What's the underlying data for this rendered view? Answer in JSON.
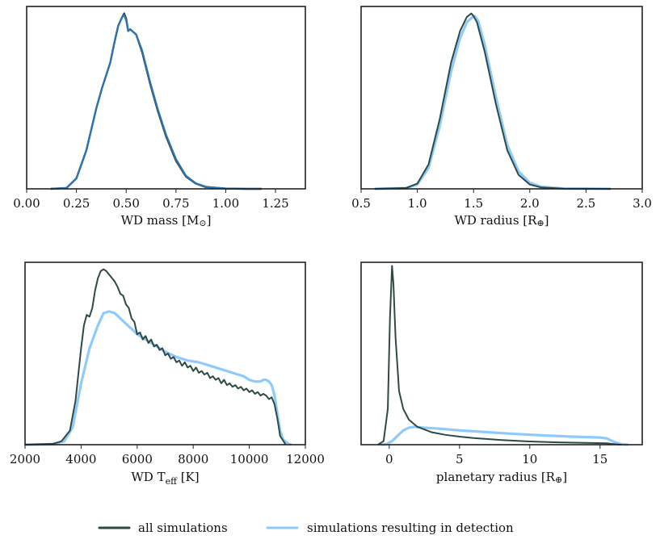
{
  "colors": {
    "all": "#2f4a46",
    "detected": "#8ecbfc",
    "overlap": "#2e74b0",
    "axis": "#222222"
  },
  "legend": {
    "all_label": "all simulations",
    "detected_label": "simulations resulting in detection"
  },
  "chart_data": [
    {
      "type": "line",
      "id": "wd-mass",
      "xlabel_main": "WD mass [M",
      "xlabel_sym": "⊙",
      "xlabel_end": "]",
      "xlim": [
        0.0,
        1.4
      ],
      "ylim": [
        0,
        1.04
      ],
      "xticks": [
        0.0,
        0.25,
        0.5,
        0.75,
        1.0,
        1.25
      ],
      "xtick_labels": [
        "0.00",
        "0.25",
        "0.50",
        "0.75",
        "1.00",
        "1.25"
      ],
      "x_range": [
        0.12,
        1.18
      ],
      "overlapping": true,
      "series": [
        {
          "name": "all simulations",
          "x": [
            0.12,
            0.2,
            0.25,
            0.3,
            0.35,
            0.38,
            0.4,
            0.42,
            0.44,
            0.46,
            0.48,
            0.49,
            0.5,
            0.51,
            0.52,
            0.55,
            0.58,
            0.62,
            0.66,
            0.7,
            0.75,
            0.8,
            0.85,
            0.9,
            1.0,
            1.1,
            1.18
          ],
          "y": [
            0,
            0.005,
            0.06,
            0.22,
            0.46,
            0.58,
            0.65,
            0.72,
            0.83,
            0.93,
            0.98,
            1.0,
            0.97,
            0.9,
            0.91,
            0.88,
            0.78,
            0.6,
            0.44,
            0.3,
            0.16,
            0.07,
            0.03,
            0.01,
            0.002,
            0,
            0
          ]
        },
        {
          "name": "simulations resulting in detection",
          "x": [
            0.12,
            0.2,
            0.25,
            0.3,
            0.35,
            0.38,
            0.4,
            0.42,
            0.44,
            0.46,
            0.48,
            0.49,
            0.5,
            0.51,
            0.52,
            0.55,
            0.58,
            0.62,
            0.66,
            0.7,
            0.75,
            0.8,
            0.85,
            0.9,
            1.0,
            1.1,
            1.18
          ],
          "y": [
            0,
            0.005,
            0.06,
            0.22,
            0.46,
            0.58,
            0.65,
            0.72,
            0.83,
            0.93,
            0.98,
            0.99,
            0.96,
            0.9,
            0.91,
            0.88,
            0.79,
            0.61,
            0.45,
            0.31,
            0.17,
            0.075,
            0.032,
            0.012,
            0.002,
            0,
            0
          ]
        }
      ]
    },
    {
      "type": "line",
      "id": "wd-radius",
      "xlabel_main": "WD radius [R",
      "xlabel_sym": "⊕",
      "xlabel_end": "]",
      "xlim": [
        0.5,
        3.0
      ],
      "ylim": [
        0,
        1.04
      ],
      "xticks": [
        0.5,
        1.0,
        1.5,
        2.0,
        2.5,
        3.0
      ],
      "xtick_labels": [
        "0.5",
        "1.0",
        "1.5",
        "2.0",
        "2.5",
        "3.0"
      ],
      "x_range": [
        0.62,
        2.72
      ],
      "series": [
        {
          "name": "all simulations",
          "x": [
            0.62,
            0.9,
            1.0,
            1.1,
            1.2,
            1.3,
            1.38,
            1.44,
            1.48,
            1.5,
            1.53,
            1.6,
            1.7,
            1.8,
            1.9,
            2.0,
            2.1,
            2.3,
            2.72
          ],
          "y": [
            0,
            0.005,
            0.03,
            0.14,
            0.4,
            0.72,
            0.9,
            0.98,
            1.0,
            0.985,
            0.95,
            0.78,
            0.48,
            0.22,
            0.08,
            0.025,
            0.008,
            0.001,
            0
          ]
        },
        {
          "name": "simulations resulting in detection",
          "x": [
            0.62,
            0.9,
            1.0,
            1.1,
            1.2,
            1.3,
            1.38,
            1.44,
            1.49,
            1.51,
            1.54,
            1.6,
            1.7,
            1.8,
            1.9,
            2.0,
            2.1,
            2.3,
            2.72
          ],
          "y": [
            0,
            0.004,
            0.025,
            0.12,
            0.36,
            0.67,
            0.86,
            0.95,
            0.98,
            0.985,
            0.96,
            0.82,
            0.52,
            0.25,
            0.1,
            0.035,
            0.012,
            0.002,
            0
          ]
        }
      ]
    },
    {
      "type": "line",
      "id": "wd-teff",
      "xlabel_main": "WD T",
      "xlabel_sub": "eff",
      "xlabel_end": " [K]",
      "xlim": [
        2000,
        12000
      ],
      "ylim": [
        0,
        1.04
      ],
      "xticks": [
        2000,
        4000,
        6000,
        8000,
        10000,
        12000
      ],
      "xtick_labels": [
        "2000",
        "4000",
        "6000",
        "8000",
        "10000",
        "12000"
      ],
      "series": [
        {
          "name": "all simulations",
          "x": [
            2000,
            3000,
            3300,
            3600,
            3800,
            4000,
            4100,
            4200,
            4300,
            4400,
            4500,
            4600,
            4700,
            4800,
            4900,
            5000,
            5100,
            5200,
            5300,
            5400,
            5500,
            5600,
            5700,
            5800,
            5900,
            6000,
            6100,
            6200,
            6300,
            6400,
            6500,
            6600,
            6700,
            6800,
            6900,
            7000,
            7100,
            7200,
            7300,
            7400,
            7500,
            7600,
            7700,
            7800,
            7900,
            8000,
            8100,
            8200,
            8300,
            8400,
            8500,
            8600,
            8700,
            8800,
            8900,
            9000,
            9100,
            9200,
            9300,
            9400,
            9500,
            9600,
            9700,
            9800,
            9900,
            10000,
            10100,
            10200,
            10300,
            10400,
            10500,
            10600,
            10700,
            10800,
            10900,
            11000,
            11100,
            11300
          ],
          "y": [
            0,
            0.005,
            0.02,
            0.08,
            0.25,
            0.55,
            0.68,
            0.74,
            0.73,
            0.78,
            0.88,
            0.95,
            0.99,
            1.0,
            0.99,
            0.97,
            0.95,
            0.93,
            0.9,
            0.86,
            0.85,
            0.8,
            0.78,
            0.72,
            0.7,
            0.63,
            0.64,
            0.6,
            0.62,
            0.58,
            0.6,
            0.56,
            0.57,
            0.54,
            0.55,
            0.51,
            0.52,
            0.49,
            0.5,
            0.47,
            0.48,
            0.45,
            0.47,
            0.44,
            0.45,
            0.42,
            0.44,
            0.41,
            0.42,
            0.4,
            0.41,
            0.38,
            0.39,
            0.37,
            0.38,
            0.35,
            0.37,
            0.34,
            0.35,
            0.33,
            0.34,
            0.32,
            0.33,
            0.31,
            0.32,
            0.3,
            0.31,
            0.29,
            0.3,
            0.28,
            0.29,
            0.28,
            0.26,
            0.27,
            0.23,
            0.15,
            0.05,
            0
          ]
        },
        {
          "name": "simulations resulting in detection",
          "x": [
            2000,
            3000,
            3400,
            3700,
            4000,
            4300,
            4600,
            4800,
            5000,
            5200,
            5400,
            5600,
            5800,
            6000,
            6300,
            6600,
            7000,
            7400,
            7800,
            8200,
            8600,
            9000,
            9400,
            9800,
            10000,
            10200,
            10400,
            10500,
            10600,
            10700,
            10800,
            10900,
            11000,
            11100,
            11200,
            11400,
            11500
          ],
          "y": [
            0,
            0.003,
            0.02,
            0.1,
            0.35,
            0.55,
            0.68,
            0.75,
            0.76,
            0.75,
            0.72,
            0.69,
            0.66,
            0.63,
            0.6,
            0.57,
            0.53,
            0.5,
            0.48,
            0.47,
            0.45,
            0.43,
            0.41,
            0.39,
            0.37,
            0.36,
            0.36,
            0.37,
            0.37,
            0.36,
            0.34,
            0.28,
            0.18,
            0.08,
            0.03,
            0.005,
            0
          ]
        }
      ]
    },
    {
      "type": "line",
      "id": "planet-radius",
      "xlabel_main": "planetary radius [R",
      "xlabel_sym": "⊕",
      "xlabel_end": "]",
      "xlim": [
        -2,
        18
      ],
      "ylim": [
        0,
        1.02
      ],
      "xticks": [
        0,
        5,
        10,
        15
      ],
      "xtick_labels": [
        "0",
        "5",
        "10",
        "15"
      ],
      "series": [
        {
          "name": "all simulations",
          "x": [
            -0.8,
            -0.4,
            -0.1,
            0.05,
            0.2,
            0.3,
            0.45,
            0.7,
            1.0,
            1.4,
            2.0,
            3.0,
            4.0,
            5.0,
            6.0,
            8.0,
            10.0,
            12.0,
            14.0,
            15.5,
            16.0,
            16.5
          ],
          "y": [
            0,
            0.02,
            0.2,
            0.7,
            1.0,
            0.9,
            0.6,
            0.3,
            0.2,
            0.14,
            0.1,
            0.07,
            0.055,
            0.045,
            0.037,
            0.026,
            0.018,
            0.013,
            0.01,
            0.008,
            0.003,
            0
          ]
        },
        {
          "name": "simulations resulting in detection",
          "x": [
            -0.6,
            -0.2,
            0.2,
            0.6,
            1.0,
            1.4,
            1.8,
            2.5,
            3.5,
            5.0,
            7.0,
            9.0,
            11.0,
            13.0,
            15.0,
            15.5,
            16.0,
            16.5,
            17.0
          ],
          "y": [
            0,
            0.003,
            0.02,
            0.05,
            0.08,
            0.095,
            0.1,
            0.095,
            0.09,
            0.08,
            0.07,
            0.06,
            0.052,
            0.045,
            0.04,
            0.035,
            0.015,
            0.003,
            0
          ]
        }
      ]
    }
  ]
}
